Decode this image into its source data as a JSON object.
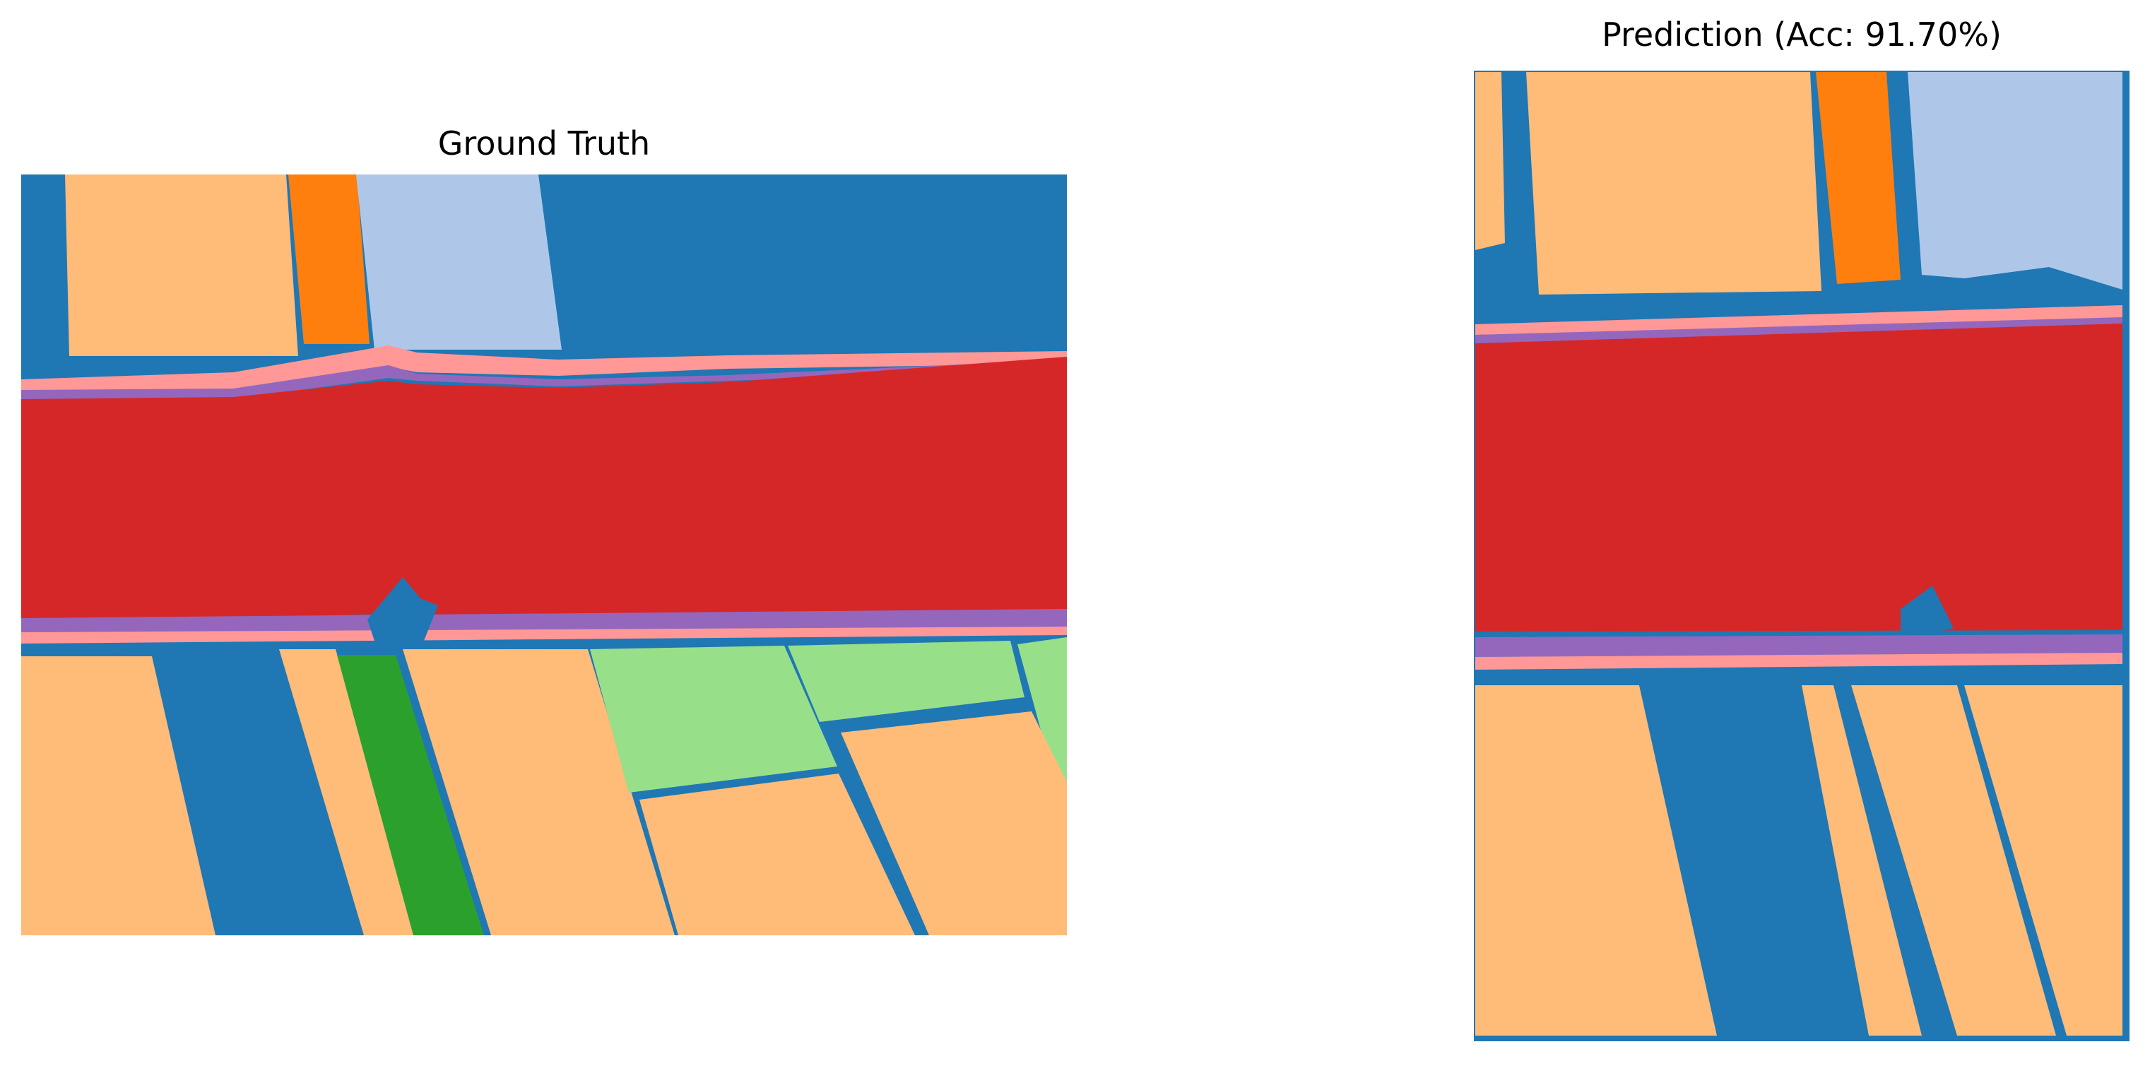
{
  "figures": [
    {
      "id": "ground-truth",
      "title": "Ground Truth"
    },
    {
      "id": "prediction",
      "title": "Prediction (Acc: 91.70%)"
    }
  ],
  "colors": {
    "background_class": "#1f77b4",
    "field_peach": "#ffbb78",
    "field_orange": "#ff7f0e",
    "field_lightblue": "#aec7e8",
    "river_red": "#d62728",
    "bank_pink": "#ff9896",
    "bank_purple": "#9467bd",
    "field_green": "#2ca02c",
    "field_lightgreen": "#98df8a",
    "frame_border": "#1f77b4"
  }
}
